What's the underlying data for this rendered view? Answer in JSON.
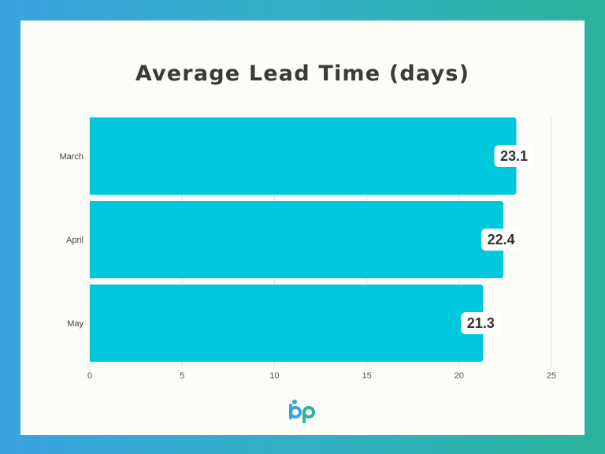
{
  "chart_data": {
    "type": "bar",
    "orientation": "horizontal",
    "title": "Average Lead Time (days)",
    "xlabel": "",
    "ylabel": "",
    "categories": [
      "March",
      "April",
      "May"
    ],
    "values": [
      23.1,
      22.4,
      21.3
    ],
    "value_labels": [
      "23.1",
      "22.4",
      "21.3"
    ],
    "xlim": [
      0,
      25
    ],
    "xticks": [
      "0",
      "5",
      "10",
      "15",
      "20",
      "25"
    ],
    "grid": "vertical",
    "bar_color": "#00c8dc"
  },
  "colors": {
    "background_gradient_start": "#3aa3df",
    "background_gradient_end": "#2bb39b",
    "card": "#fefcf8",
    "logo_blue": "#3aa3df",
    "logo_teal": "#2bb39b"
  },
  "logo": {
    "icon": "bp-logo-icon"
  }
}
